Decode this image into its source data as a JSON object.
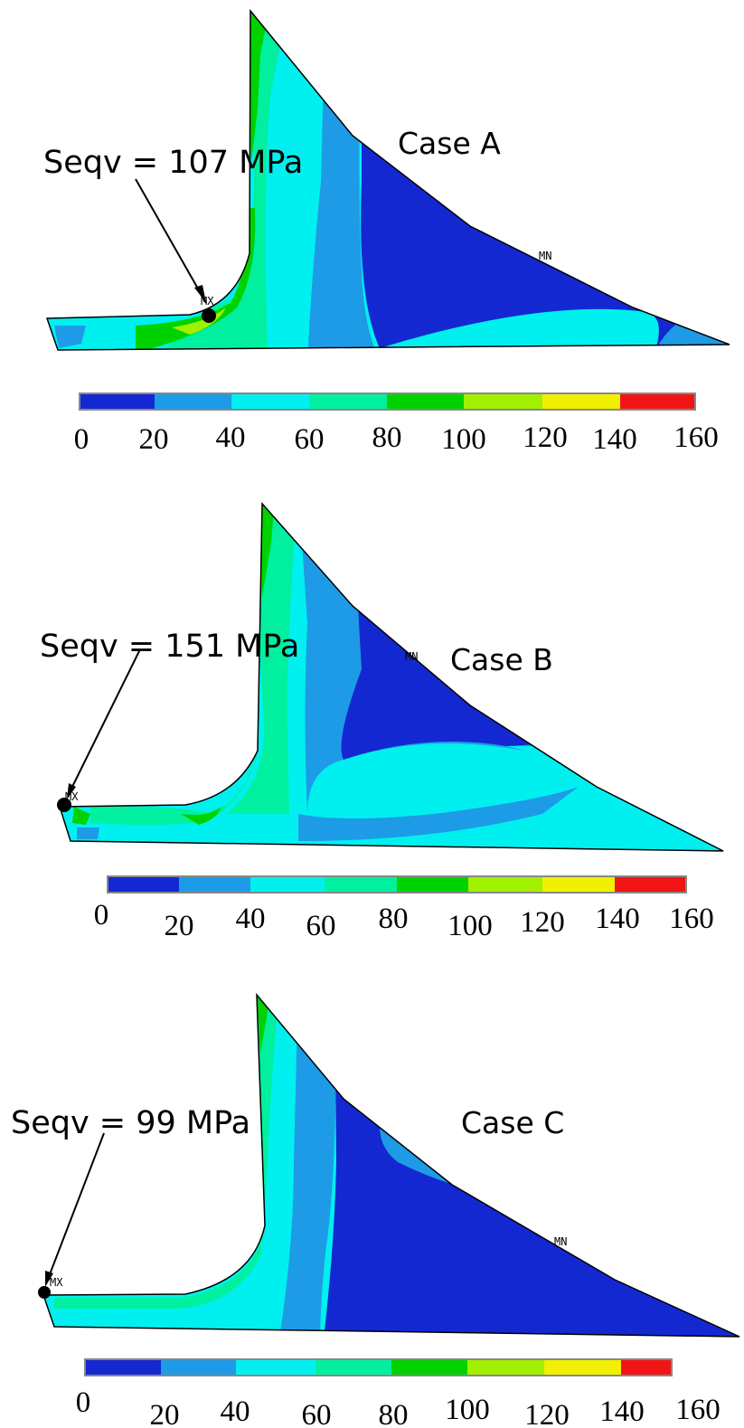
{
  "panels": [
    {
      "case_label": "Case A",
      "seqv_label": "Seqv = 107 MPa",
      "max_marker": "MX",
      "min_marker": "MN",
      "scale_ticks": [
        "0",
        "20",
        "40",
        "60",
        "80",
        "100",
        "120",
        "140",
        "160"
      ]
    },
    {
      "case_label": "Case B",
      "seqv_label": "Seqv = 151 MPa",
      "max_marker": "MX",
      "min_marker": "MN",
      "scale_ticks": [
        "0",
        "20",
        "40",
        "60",
        "80",
        "100",
        "120",
        "140",
        "160"
      ]
    },
    {
      "case_label": "Case C",
      "seqv_label": "Seqv = 99 MPa",
      "max_marker": "MX",
      "min_marker": "MN",
      "scale_ticks": [
        "0",
        "20",
        "40",
        "60",
        "80",
        "100",
        "120",
        "140",
        "160"
      ]
    }
  ],
  "color_scale": {
    "bands": [
      "#1428d2",
      "#1e9be6",
      "#00f0f0",
      "#00f0a0",
      "#00d200",
      "#a0f000",
      "#f0f000",
      "#f01414"
    ]
  }
}
